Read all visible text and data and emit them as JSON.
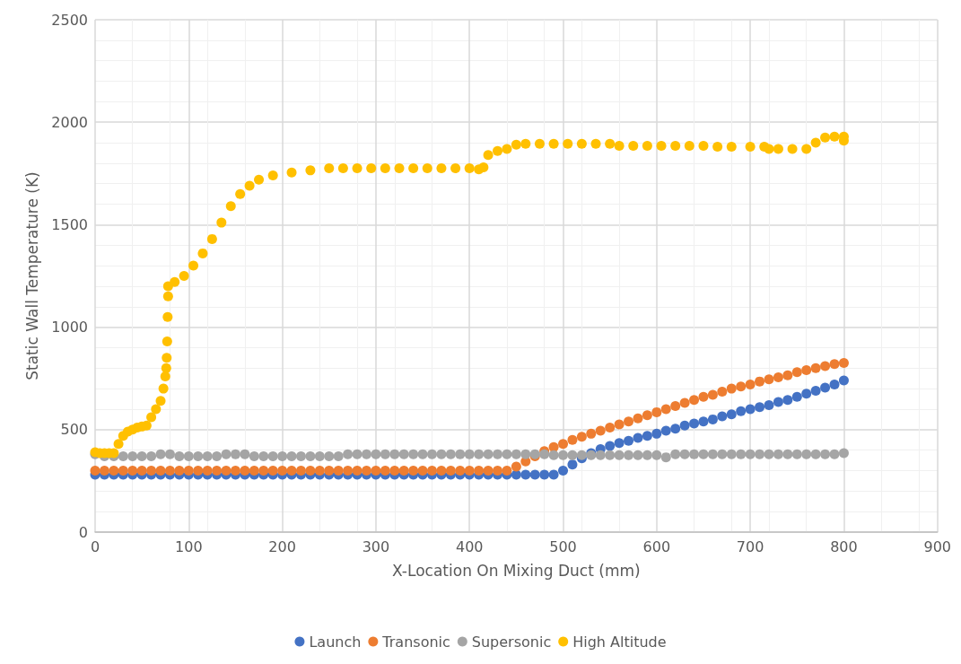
{
  "chart_data": {
    "type": "scatter",
    "xlabel": "X-Location On Mixing Duct (mm)",
    "ylabel": "Static Wall Temperature (K)",
    "x": [
      0,
      10,
      20,
      30,
      40,
      50,
      60,
      70,
      80,
      90,
      100,
      110,
      120,
      130,
      140,
      150,
      160,
      170,
      180,
      190,
      200,
      210,
      220,
      230,
      240,
      250,
      260,
      270,
      280,
      290,
      300,
      310,
      320,
      330,
      340,
      350,
      360,
      370,
      380,
      390,
      400,
      410,
      420,
      430,
      440,
      450,
      460,
      470,
      480,
      490,
      500,
      510,
      520,
      530,
      540,
      550,
      560,
      570,
      580,
      590,
      600,
      610,
      620,
      630,
      640,
      650,
      660,
      670,
      680,
      690,
      700,
      710,
      720,
      730,
      740,
      750,
      760,
      770,
      780,
      790,
      800
    ],
    "xlim": [
      0,
      900
    ],
    "xticks": [
      0,
      100,
      200,
      300,
      400,
      500,
      600,
      700,
      800,
      900
    ],
    "ylim": [
      0,
      2500
    ],
    "yticks": [
      0,
      500,
      1000,
      1500,
      2000,
      2500
    ],
    "grid": true,
    "legend": "bottom",
    "marker": "circle",
    "series": [
      {
        "name": "Launch",
        "color": "#4472c4",
        "values": [
          280,
          280,
          280,
          280,
          280,
          280,
          280,
          280,
          280,
          280,
          280,
          280,
          280,
          280,
          280,
          280,
          280,
          280,
          280,
          280,
          280,
          280,
          280,
          280,
          280,
          280,
          280,
          280,
          280,
          280,
          280,
          280,
          280,
          280,
          280,
          280,
          280,
          280,
          280,
          280,
          280,
          280,
          280,
          280,
          280,
          280,
          280,
          280,
          280,
          280,
          300,
          330,
          360,
          385,
          405,
          420,
          435,
          445,
          460,
          470,
          480,
          495,
          505,
          520,
          530,
          540,
          550,
          565,
          575,
          590,
          600,
          610,
          620,
          635,
          645,
          660,
          675,
          690,
          705,
          720,
          740
        ]
      },
      {
        "name": "Transonic",
        "color": "#ed7d31",
        "values": [
          300,
          300,
          300,
          300,
          300,
          300,
          300,
          300,
          300,
          300,
          300,
          300,
          300,
          300,
          300,
          300,
          300,
          300,
          300,
          300,
          300,
          300,
          300,
          300,
          300,
          300,
          300,
          300,
          300,
          300,
          300,
          300,
          300,
          300,
          300,
          300,
          300,
          300,
          300,
          300,
          300,
          300,
          300,
          300,
          300,
          320,
          345,
          370,
          395,
          415,
          430,
          450,
          465,
          480,
          495,
          510,
          525,
          540,
          555,
          570,
          585,
          600,
          615,
          630,
          645,
          660,
          670,
          685,
          700,
          710,
          720,
          735,
          745,
          755,
          765,
          780,
          790,
          800,
          810,
          820,
          825
        ]
      },
      {
        "name": "Supersonic",
        "color": "#a5a5a5",
        "values": [
          380,
          370,
          370,
          370,
          370,
          370,
          370,
          380,
          380,
          370,
          370,
          370,
          370,
          370,
          380,
          380,
          380,
          370,
          370,
          370,
          370,
          370,
          370,
          370,
          370,
          370,
          370,
          380,
          380,
          380,
          380,
          380,
          380,
          380,
          380,
          380,
          380,
          380,
          380,
          380,
          380,
          380,
          380,
          380,
          380,
          380,
          380,
          380,
          380,
          375,
          375,
          375,
          375,
          375,
          375,
          375,
          375,
          375,
          375,
          375,
          375,
          365,
          380,
          380,
          380,
          380,
          380,
          380,
          380,
          380,
          380,
          380,
          380,
          380,
          380,
          380,
          380,
          380,
          380,
          380,
          385
        ]
      },
      {
        "name": "High Altitude",
        "color": "#ffc000",
        "x": [
          0,
          5,
          10,
          15,
          20,
          25,
          30,
          35,
          40,
          45,
          50,
          55,
          60,
          65,
          70,
          73,
          75,
          76,
          76.5,
          77,
          77.5,
          78,
          78,
          85,
          95,
          105,
          115,
          125,
          135,
          145,
          155,
          165,
          175,
          190,
          210,
          230,
          250,
          265,
          280,
          295,
          310,
          325,
          340,
          355,
          370,
          385,
          400,
          410,
          415,
          420,
          430,
          440,
          450,
          460,
          475,
          490,
          505,
          520,
          535,
          550,
          560,
          575,
          590,
          605,
          620,
          635,
          650,
          665,
          680,
          700,
          715,
          720,
          730,
          745,
          760,
          770,
          780,
          790,
          800,
          800
        ],
        "values": [
          390,
          385,
          385,
          385,
          385,
          430,
          470,
          490,
          500,
          510,
          515,
          520,
          560,
          600,
          640,
          700,
          760,
          800,
          850,
          930,
          1050,
          1150,
          1200,
          1220,
          1250,
          1300,
          1360,
          1430,
          1510,
          1590,
          1650,
          1690,
          1720,
          1740,
          1755,
          1765,
          1775,
          1775,
          1775,
          1775,
          1775,
          1775,
          1775,
          1775,
          1775,
          1775,
          1775,
          1770,
          1780,
          1840,
          1860,
          1870,
          1890,
          1895,
          1895,
          1895,
          1895,
          1895,
          1895,
          1895,
          1885,
          1885,
          1885,
          1885,
          1885,
          1885,
          1885,
          1880,
          1880,
          1880,
          1880,
          1870,
          1870,
          1870,
          1870,
          1900,
          1925,
          1930,
          1930,
          1910
        ]
      }
    ]
  }
}
